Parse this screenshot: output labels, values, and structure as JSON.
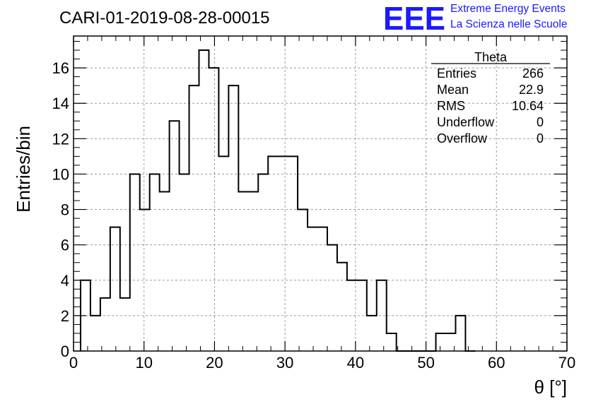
{
  "chart_data": {
    "type": "bar",
    "title": "CARI-01-2019-08-28-00015",
    "xlabel": "θ [°]",
    "ylabel": "Entries/bin",
    "xlim": [
      0,
      70
    ],
    "ylim": [
      0,
      17.8
    ],
    "x_ticks": [
      0,
      10,
      20,
      30,
      40,
      50,
      60,
      70
    ],
    "y_ticks": [
      0,
      2,
      4,
      6,
      8,
      10,
      12,
      14,
      16
    ],
    "grid": true,
    "bin_width": 1.4,
    "x_start": 1.0,
    "series": [
      {
        "name": "Theta",
        "values": [
          4,
          2,
          3,
          7,
          3,
          10,
          8,
          10,
          9,
          13,
          10,
          15,
          17,
          16,
          11,
          15,
          9,
          9,
          10,
          11,
          11,
          11,
          8,
          7,
          7,
          6,
          5,
          4,
          4,
          2,
          4,
          1,
          0,
          0,
          0,
          0,
          1,
          1,
          2,
          0
        ]
      }
    ],
    "stats_box": {
      "title": "Theta",
      "placement": "top-right",
      "rows": [
        {
          "label": "Entries",
          "value": "266"
        },
        {
          "label": "Mean",
          "value": "22.9"
        },
        {
          "label": "RMS",
          "value": "10.64"
        },
        {
          "label": "Underflow",
          "value": "0"
        },
        {
          "label": "Overflow",
          "value": "0"
        }
      ]
    }
  },
  "logo": {
    "mark": "EEE",
    "line1": "Extreme Energy Events",
    "line2": "La Scienza nelle Scuole",
    "color": "#1a1aff"
  }
}
